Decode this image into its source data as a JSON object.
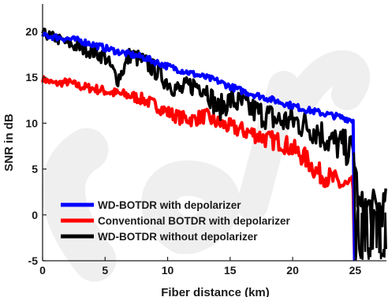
{
  "chart_data": {
    "type": "line",
    "xlabel": "Fiber distance (km)",
    "ylabel": "SNR in dB",
    "xlim": [
      0,
      27.5
    ],
    "ylim": [
      -5,
      23
    ],
    "xticks": [
      0,
      5,
      10,
      15,
      20,
      25
    ],
    "yticks": [
      -5,
      0,
      5,
      10,
      15,
      20
    ],
    "legend_position": "lower-left",
    "grid": false,
    "series": [
      {
        "name": "WD-BOTDR with depolarizer",
        "color": "#0000ff",
        "x": [
          0,
          1,
          2,
          3,
          4,
          5,
          6,
          7,
          8,
          9,
          10,
          11,
          12,
          13,
          14,
          15,
          16,
          17,
          18,
          19,
          20,
          21,
          22,
          23,
          24,
          24.9
        ],
        "y": [
          19.6,
          19.4,
          19.2,
          19.0,
          18.6,
          18.2,
          17.8,
          17.5,
          17.2,
          16.7,
          16.2,
          15.8,
          15.4,
          15.0,
          14.6,
          14.0,
          13.5,
          13.1,
          12.7,
          12.3,
          11.9,
          11.5,
          11.2,
          10.9,
          10.6,
          10.3
        ]
      },
      {
        "name": "Conventional BOTDR with depolarizer",
        "color": "#ff0000",
        "x": [
          0,
          1,
          2,
          3,
          4,
          5,
          6,
          7,
          8,
          9,
          10,
          11,
          12,
          13,
          14,
          15,
          16,
          17,
          18,
          19,
          20,
          21,
          22,
          23,
          24,
          24.9
        ],
        "y": [
          14.8,
          14.3,
          14.5,
          14.0,
          13.8,
          13.5,
          13.2,
          13.0,
          12.6,
          12.0,
          11.2,
          10.6,
          10.4,
          10.8,
          10.0,
          9.6,
          9.2,
          8.8,
          8.2,
          8.0,
          7.2,
          6.2,
          4.6,
          4.0,
          3.2,
          2.9
        ]
      },
      {
        "name": "WD-BOTDR without depolarizer",
        "color": "#000000",
        "x": [
          0,
          1,
          2,
          3,
          4,
          5,
          6,
          6.5,
          7,
          8,
          9,
          10,
          11,
          12,
          13,
          14,
          15,
          16,
          17,
          18,
          19,
          20,
          21,
          22,
          23,
          24,
          24.9,
          25.3,
          26,
          27,
          27.5
        ],
        "y": [
          19.8,
          19.3,
          18.7,
          18.2,
          17.8,
          17.2,
          14.8,
          16.0,
          17.5,
          16.8,
          15.8,
          14.5,
          13.5,
          14.2,
          14.0,
          11.5,
          12.5,
          12.0,
          11.3,
          10.8,
          10.2,
          10.3,
          9.8,
          9.2,
          8.0,
          7.5,
          6.8,
          0.6,
          0.8,
          0.7,
          0.9
        ]
      }
    ]
  }
}
